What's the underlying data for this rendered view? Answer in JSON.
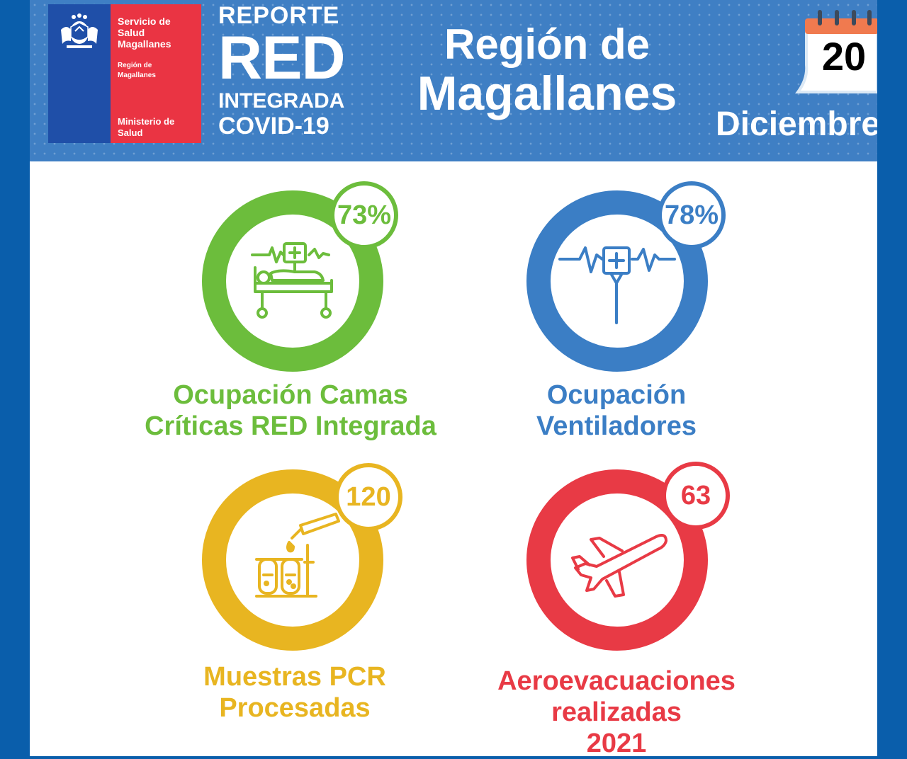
{
  "header": {
    "logo": {
      "org_lines": [
        "Servicio de",
        "Salud",
        "Magallanes"
      ],
      "region_lines": [
        "Región de",
        "Magallanes"
      ],
      "ministry_lines": [
        "Ministerio de",
        "Salud"
      ]
    },
    "report": {
      "line1": "REPORTE",
      "line2": "RED",
      "line3": "INTEGRADA",
      "line4": "COVID-19"
    },
    "region": {
      "line1": "Región de",
      "line2": "Magallanes"
    },
    "date": {
      "day": "20",
      "month": "Diciembre"
    }
  },
  "stats": [
    {
      "value": "73%",
      "label_lines": [
        "Ocupación Camas",
        "Críticas RED Integrada"
      ],
      "color": "#6cbd3c",
      "icon": "hospital-bed-icon"
    },
    {
      "value": "78%",
      "label_lines": [
        "Ocupación",
        "Ventiladores"
      ],
      "color": "#3b7ec5",
      "icon": "ventilator-icon"
    },
    {
      "value": "120",
      "label_lines": [
        "Muestras PCR",
        "Procesadas"
      ],
      "color": "#e8b521",
      "icon": "test-tubes-icon"
    },
    {
      "value": "63",
      "label_lines": [
        "Aeroevacuaciones",
        "realizadas",
        "2021"
      ],
      "color": "#e83a45",
      "icon": "airplane-icon"
    }
  ]
}
